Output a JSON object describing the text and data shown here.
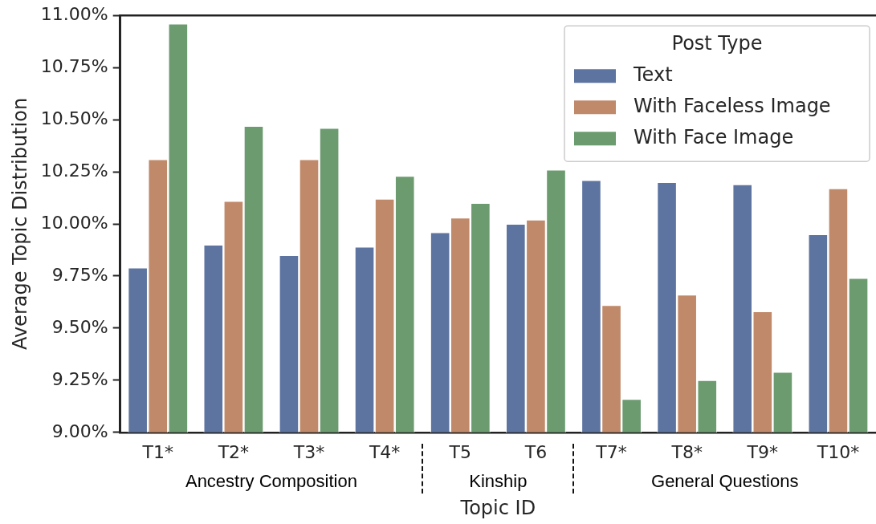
{
  "chart_data": {
    "type": "bar",
    "xlabel": "Topic ID",
    "ylabel": "Average Topic Distribution",
    "legend_title": "Post Type",
    "legend": "top right",
    "grid": false,
    "categories": [
      "T1*",
      "T2*",
      "T3*",
      "T4*",
      "T5",
      "T6",
      "T7*",
      "T8*",
      "T9*",
      "T10*"
    ],
    "series": [
      {
        "name": "Text",
        "color": "#5d74a0",
        "values": [
          9.79,
          9.9,
          9.85,
          9.89,
          9.96,
          10.0,
          10.21,
          10.2,
          10.19,
          9.95
        ]
      },
      {
        "name": "With Faceless Image",
        "color": "#c0896a",
        "values": [
          10.31,
          10.11,
          10.31,
          10.12,
          10.03,
          10.02,
          9.61,
          9.66,
          9.58,
          10.17
        ]
      },
      {
        "name": "With Face Image",
        "color": "#6b9b6f",
        "values": [
          10.96,
          10.47,
          10.46,
          10.23,
          10.1,
          10.26,
          9.16,
          9.25,
          9.29,
          9.74
        ]
      }
    ],
    "ylim": [
      9,
      11
    ],
    "yticks": [
      {
        "value": 9,
        "label": "9.00%"
      },
      {
        "value": 9.25,
        "label": "9.25%"
      },
      {
        "value": 9.5,
        "label": "9.50%"
      },
      {
        "value": 9.75,
        "label": "9.75%"
      },
      {
        "value": 10,
        "label": "10.00%"
      },
      {
        "value": 10.25,
        "label": "10.25%"
      },
      {
        "value": 10.5,
        "label": "10.50%"
      },
      {
        "value": 10.75,
        "label": "10.75%"
      },
      {
        "value": 11,
        "label": "11.00%"
      }
    ],
    "annotations": [
      "Ancestry Composition",
      "Kinship",
      "General Questions"
    ]
  }
}
